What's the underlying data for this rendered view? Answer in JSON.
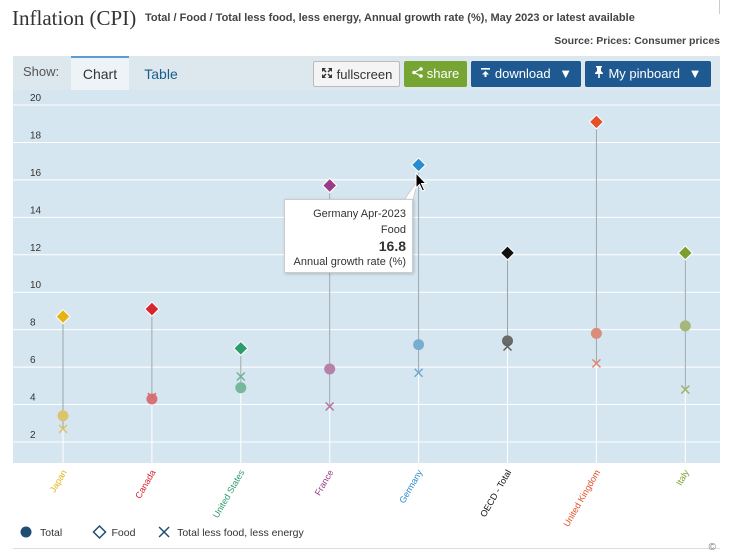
{
  "header": {
    "title": "Inflation (CPI)",
    "subtitle": "Total / Food / Total less food, less energy, Annual growth rate (%), May 2023 or latest available",
    "source": "Source: Prices: Consumer prices"
  },
  "toolbar": {
    "show_label": "Show:",
    "tab_chart": "Chart",
    "tab_table": "Table",
    "fullscreen_label": "fullscreen",
    "share_label": "share",
    "download_label": "download",
    "pinboard_label": "My pinboard"
  },
  "tooltip": {
    "line1": "Germany Apr-2023",
    "line2": "Food",
    "value": "16.8",
    "line4": "Annual growth rate (%)"
  },
  "copyright": "©",
  "colors": {
    "plot_background": "#d6e6f0",
    "Japan": "#e4b417",
    "Canada": "#d9232d",
    "United States": "#2a9d6a",
    "France": "#9b3b85",
    "Germany": "#2b8ccd",
    "OECD - Total": "#111111",
    "United Kingdom": "#e2512a",
    "Italy": "#7c9e2e"
  },
  "chart_data": {
    "type": "scatter",
    "categories": [
      "Japan",
      "Canada",
      "United States",
      "France",
      "Germany",
      "OECD - Total",
      "United Kingdom",
      "Italy"
    ],
    "ylim": [
      1,
      20
    ],
    "yticks": [
      2,
      4,
      6,
      8,
      10,
      12,
      14,
      16,
      18,
      20
    ],
    "grid": true,
    "legend_position": "bottom-left",
    "series": [
      {
        "name": "Total",
        "marker": "circle",
        "values": [
          3.4,
          4.3,
          4.9,
          5.9,
          7.2,
          7.4,
          7.8,
          8.2
        ]
      },
      {
        "name": "Food",
        "marker": "diamond",
        "values": [
          8.7,
          9.1,
          7.0,
          15.7,
          16.8,
          12.1,
          19.1,
          12.1
        ]
      },
      {
        "name": "Total less food, less energy",
        "marker": "x",
        "values": [
          2.7,
          4.4,
          5.5,
          3.9,
          5.7,
          7.1,
          6.2,
          4.8
        ]
      }
    ]
  }
}
